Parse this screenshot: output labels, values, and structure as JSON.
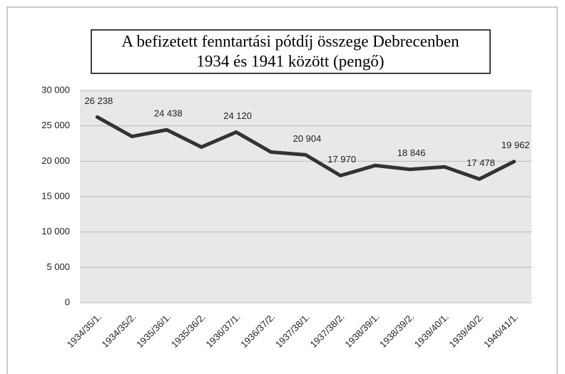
{
  "chart_data": {
    "type": "line",
    "title": [
      "A befizetett fenntartási pótdíj összege Debrecenben",
      "1934 és 1941 között (pengő)"
    ],
    "categories": [
      "1934/35/1.",
      "1934/35/2.",
      "1935/36/1.",
      "1935/36/2.",
      "1936/37/1.",
      "1936/37/2.",
      "1937/38/1.",
      "1937/38/2.",
      "1938/39/1.",
      "1938/39/2.",
      "1939/40/1.",
      "1939/40/2.",
      "1940/41/1."
    ],
    "series": [
      {
        "color": "#333333",
        "values": [
          26238,
          23500,
          24438,
          22000,
          24120,
          21300,
          20904,
          17970,
          19400,
          18846,
          19200,
          17478,
          19962
        ],
        "value_labels": [
          "26 238",
          null,
          "24 438",
          null,
          "24 120",
          null,
          "20 904",
          "17 970",
          null,
          "18 846",
          null,
          "17 478",
          "19 962"
        ]
      }
    ],
    "ylim": [
      0,
      30000
    ],
    "yticks": [
      0,
      {
        "value": 5000,
        "label": "5 000"
      },
      {
        "value": 10000,
        "label": "10 000"
      },
      {
        "value": 15000,
        "label": "15 000"
      },
      {
        "value": 20000,
        "label": "20 000"
      },
      {
        "value": 25000,
        "label": "25 000"
      },
      {
        "value": 30000,
        "label": "30 000"
      }
    ],
    "grid": true
  }
}
